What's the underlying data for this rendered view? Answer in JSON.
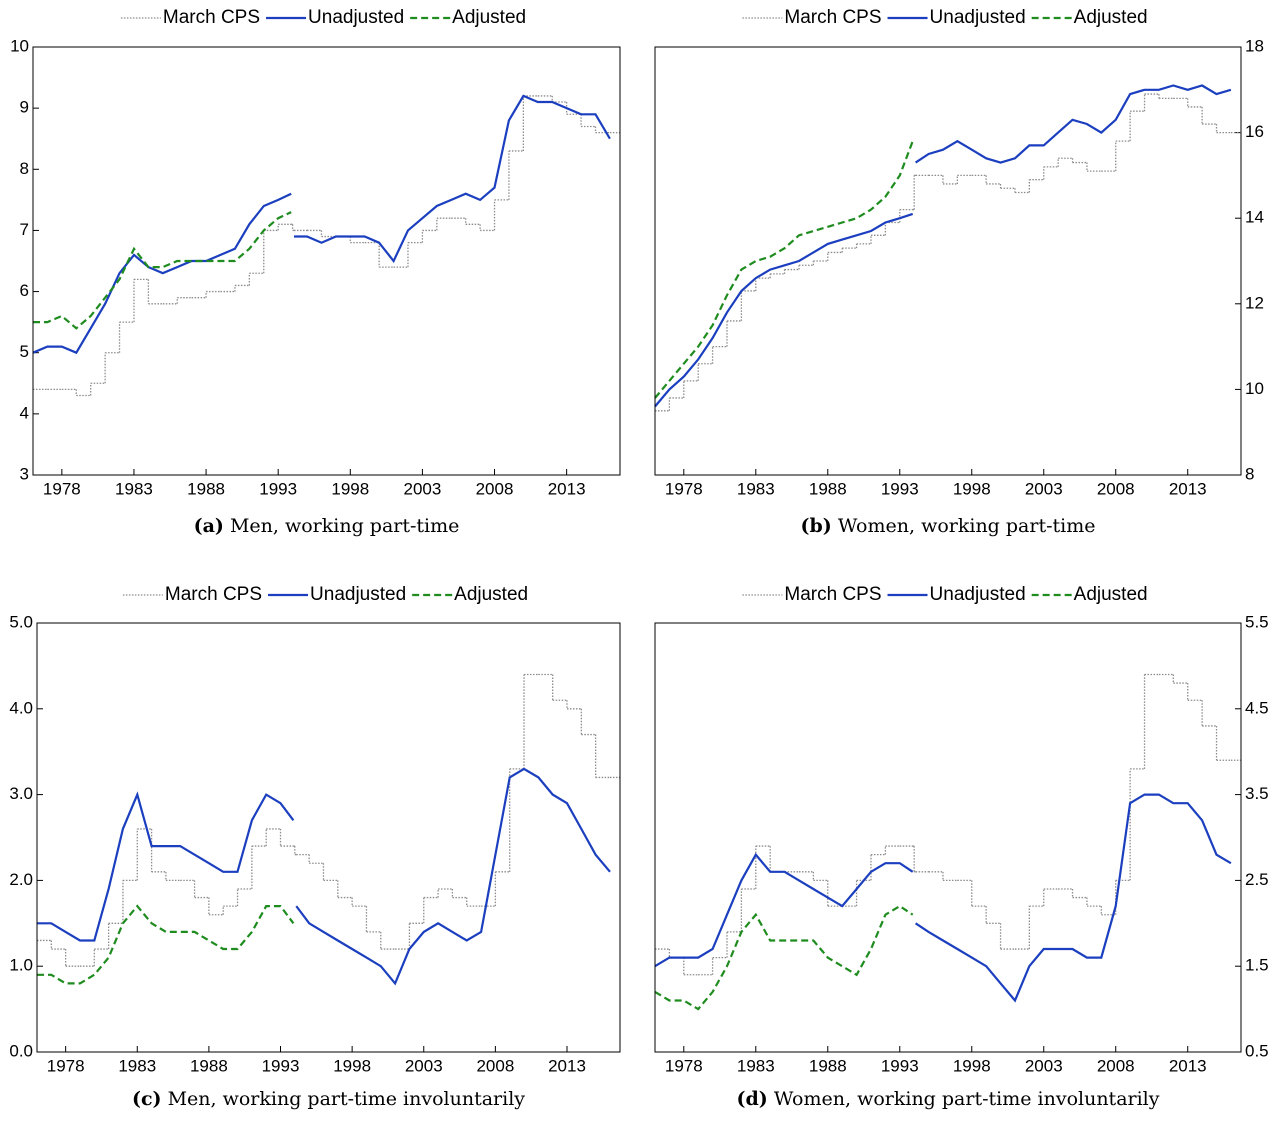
{
  "chart_data": [
    {
      "type": "line",
      "caption_label": "(a)",
      "caption": "Men, working part-time",
      "y_axis_side": "left",
      "xlim": [
        1976,
        2016.7
      ],
      "xticks": [
        1978,
        1983,
        1988,
        1993,
        1998,
        2003,
        2008,
        2013
      ],
      "ylim": [
        3,
        10
      ],
      "yticks": [
        3,
        4,
        5,
        6,
        7,
        8,
        9,
        10
      ],
      "x": [
        1976,
        1977,
        1978,
        1979,
        1980,
        1981,
        1982,
        1983,
        1984,
        1985,
        1986,
        1987,
        1988,
        1989,
        1990,
        1991,
        1992,
        1993,
        1993.9,
        1994,
        1994.1,
        1995,
        1996,
        1997,
        1998,
        1999,
        2000,
        2001,
        2002,
        2003,
        2004,
        2005,
        2006,
        2007,
        2008,
        2009,
        2010,
        2011,
        2012,
        2013,
        2014,
        2015,
        2016
      ],
      "series": [
        {
          "name": "March CPS",
          "color": "#8c8c8c",
          "dash": "dotted",
          "step": true,
          "values": [
            4.4,
            4.4,
            4.4,
            4.3,
            4.5,
            5.0,
            5.5,
            6.2,
            5.8,
            5.8,
            5.9,
            5.9,
            6.0,
            6.0,
            6.1,
            6.3,
            7.0,
            7.1,
            7.1,
            7.0,
            7.0,
            7.0,
            6.9,
            6.9,
            6.8,
            6.8,
            6.4,
            6.4,
            6.8,
            7.0,
            7.2,
            7.2,
            7.1,
            7.0,
            7.5,
            8.3,
            9.2,
            9.2,
            9.1,
            8.9,
            8.7,
            8.6,
            8.6
          ]
        },
        {
          "name": "Unadjusted",
          "color": "#1b3fbf",
          "dash": "solid",
          "step": false,
          "values": [
            5.0,
            5.1,
            5.1,
            5.0,
            5.4,
            5.8,
            6.3,
            6.6,
            6.4,
            6.3,
            6.4,
            6.5,
            6.5,
            6.6,
            6.7,
            7.1,
            7.4,
            7.5,
            7.6,
            null,
            6.9,
            6.9,
            6.8,
            6.9,
            6.9,
            6.9,
            6.8,
            6.5,
            7.0,
            7.2,
            7.4,
            7.5,
            7.6,
            7.5,
            7.7,
            8.8,
            9.2,
            9.1,
            9.1,
            9.0,
            8.9,
            8.9,
            8.5
          ]
        },
        {
          "name": "Adjusted",
          "color": "#1e8c1e",
          "dash": "dashed",
          "step": false,
          "values": [
            5.5,
            5.5,
            5.6,
            5.4,
            5.6,
            5.9,
            6.2,
            6.7,
            6.4,
            6.4,
            6.5,
            6.5,
            6.5,
            6.5,
            6.5,
            6.7,
            7.0,
            7.2,
            7.3,
            null,
            null,
            null,
            null,
            null,
            null,
            null,
            null,
            null,
            null,
            null,
            null,
            null,
            null,
            null,
            null,
            null,
            null,
            null,
            null,
            null,
            null,
            null,
            null
          ]
        }
      ]
    },
    {
      "type": "line",
      "caption_label": "(b)",
      "caption": "Women, working part-time",
      "y_axis_side": "right",
      "xlim": [
        1976,
        2016.7
      ],
      "xticks": [
        1978,
        1983,
        1988,
        1993,
        1998,
        2003,
        2008,
        2013
      ],
      "ylim": [
        8,
        18
      ],
      "yticks": [
        8,
        10,
        12,
        14,
        16,
        18
      ],
      "x": [
        1976,
        1977,
        1978,
        1979,
        1980,
        1981,
        1982,
        1983,
        1984,
        1985,
        1986,
        1987,
        1988,
        1989,
        1990,
        1991,
        1992,
        1993,
        1993.9,
        1994,
        1994.1,
        1995,
        1996,
        1997,
        1998,
        1999,
        2000,
        2001,
        2002,
        2003,
        2004,
        2005,
        2006,
        2007,
        2008,
        2009,
        2010,
        2011,
        2012,
        2013,
        2014,
        2015,
        2016
      ],
      "series": [
        {
          "name": "March CPS",
          "color": "#8c8c8c",
          "dash": "dotted",
          "step": true,
          "values": [
            9.5,
            9.8,
            10.2,
            10.6,
            11.0,
            11.6,
            12.3,
            12.6,
            12.7,
            12.8,
            12.9,
            13.0,
            13.2,
            13.3,
            13.4,
            13.6,
            13.9,
            14.2,
            14.2,
            15.0,
            15.0,
            15.0,
            14.8,
            15.0,
            15.0,
            14.8,
            14.7,
            14.6,
            14.9,
            15.2,
            15.4,
            15.3,
            15.1,
            15.1,
            15.8,
            16.5,
            16.9,
            16.8,
            16.8,
            16.6,
            16.2,
            16.0,
            16.0
          ]
        },
        {
          "name": "Unadjusted",
          "color": "#1b3fbf",
          "dash": "solid",
          "step": false,
          "values": [
            9.6,
            10.0,
            10.3,
            10.7,
            11.2,
            11.8,
            12.3,
            12.6,
            12.8,
            12.9,
            13.0,
            13.2,
            13.4,
            13.5,
            13.6,
            13.7,
            13.9,
            14.0,
            14.1,
            null,
            15.3,
            15.5,
            15.6,
            15.8,
            15.6,
            15.4,
            15.3,
            15.4,
            15.7,
            15.7,
            16.0,
            16.3,
            16.2,
            16.0,
            16.3,
            16.9,
            17.0,
            17.0,
            17.1,
            17.0,
            17.1,
            16.9,
            17.0
          ]
        },
        {
          "name": "Adjusted",
          "color": "#1e8c1e",
          "dash": "dashed",
          "step": false,
          "values": [
            9.8,
            10.2,
            10.6,
            11.0,
            11.5,
            12.2,
            12.8,
            13.0,
            13.1,
            13.3,
            13.6,
            13.7,
            13.8,
            13.9,
            14.0,
            14.2,
            14.5,
            15.0,
            15.8,
            null,
            null,
            null,
            null,
            null,
            null,
            null,
            null,
            null,
            null,
            null,
            null,
            null,
            null,
            null,
            null,
            null,
            null,
            null,
            null,
            null,
            null,
            null,
            null
          ]
        }
      ]
    },
    {
      "type": "line",
      "caption_label": "(c)",
      "caption": "Men, working part-time involuntarily",
      "y_axis_side": "left",
      "xlim": [
        1976,
        2016.7
      ],
      "xticks": [
        1978,
        1983,
        1988,
        1993,
        1998,
        2003,
        2008,
        2013
      ],
      "ylim": [
        0,
        5
      ],
      "yticks": [
        {
          "value": 0,
          "label": "0.0"
        },
        {
          "value": 1,
          "label": "1.0"
        },
        {
          "value": 2,
          "label": "2.0"
        },
        {
          "value": 3,
          "label": "3.0"
        },
        {
          "value": 4,
          "label": "4.0"
        },
        {
          "value": 5,
          "label": "5.0"
        }
      ],
      "x": [
        1976,
        1977,
        1978,
        1979,
        1980,
        1981,
        1982,
        1983,
        1984,
        1985,
        1986,
        1987,
        1988,
        1989,
        1990,
        1991,
        1992,
        1993,
        1993.9,
        1994,
        1994.1,
        1995,
        1996,
        1997,
        1998,
        1999,
        2000,
        2001,
        2002,
        2003,
        2004,
        2005,
        2006,
        2007,
        2008,
        2009,
        2010,
        2011,
        2012,
        2013,
        2014,
        2015,
        2016
      ],
      "series": [
        {
          "name": "March CPS",
          "color": "#8c8c8c",
          "dash": "dotted",
          "step": true,
          "values": [
            1.3,
            1.2,
            1.0,
            1.0,
            1.2,
            1.5,
            2.0,
            2.6,
            2.1,
            2.0,
            2.0,
            1.8,
            1.6,
            1.7,
            1.9,
            2.4,
            2.6,
            2.4,
            2.4,
            2.3,
            2.3,
            2.2,
            2.0,
            1.8,
            1.7,
            1.4,
            1.2,
            1.2,
            1.5,
            1.8,
            1.9,
            1.8,
            1.7,
            1.7,
            2.1,
            3.3,
            4.4,
            4.4,
            4.1,
            4.0,
            3.7,
            3.2,
            3.2
          ]
        },
        {
          "name": "Unadjusted",
          "color": "#1b3fbf",
          "dash": "solid",
          "step": false,
          "values": [
            1.5,
            1.5,
            1.4,
            1.3,
            1.3,
            1.9,
            2.6,
            3.0,
            2.4,
            2.4,
            2.4,
            2.3,
            2.2,
            2.1,
            2.1,
            2.7,
            3.0,
            2.9,
            2.7,
            null,
            1.7,
            1.5,
            1.4,
            1.3,
            1.2,
            1.1,
            1.0,
            0.8,
            1.2,
            1.4,
            1.5,
            1.4,
            1.3,
            1.4,
            2.3,
            3.2,
            3.3,
            3.2,
            3.0,
            2.9,
            2.6,
            2.3,
            2.1
          ]
        },
        {
          "name": "Adjusted",
          "color": "#1e8c1e",
          "dash": "dashed",
          "step": false,
          "values": [
            0.9,
            0.9,
            0.8,
            0.8,
            0.9,
            1.1,
            1.5,
            1.7,
            1.5,
            1.4,
            1.4,
            1.4,
            1.3,
            1.2,
            1.2,
            1.4,
            1.7,
            1.7,
            1.5,
            null,
            null,
            null,
            null,
            null,
            null,
            null,
            null,
            null,
            null,
            null,
            null,
            null,
            null,
            null,
            null,
            null,
            null,
            null,
            null,
            null,
            null,
            null,
            null
          ]
        }
      ]
    },
    {
      "type": "line",
      "caption_label": "(d)",
      "caption": "Women, working part-time involuntarily",
      "y_axis_side": "right",
      "xlim": [
        1976,
        2016.7
      ],
      "xticks": [
        1978,
        1983,
        1988,
        1993,
        1998,
        2003,
        2008,
        2013
      ],
      "ylim": [
        0.5,
        5.5
      ],
      "yticks": [
        0.5,
        1.5,
        2.5,
        3.5,
        4.5,
        5.5
      ],
      "x": [
        1976,
        1977,
        1978,
        1979,
        1980,
        1981,
        1982,
        1983,
        1984,
        1985,
        1986,
        1987,
        1988,
        1989,
        1990,
        1991,
        1992,
        1993,
        1993.9,
        1994,
        1994.1,
        1995,
        1996,
        1997,
        1998,
        1999,
        2000,
        2001,
        2002,
        2003,
        2004,
        2005,
        2006,
        2007,
        2008,
        2009,
        2010,
        2011,
        2012,
        2013,
        2014,
        2015,
        2016
      ],
      "series": [
        {
          "name": "March CPS",
          "color": "#8c8c8c",
          "dash": "dotted",
          "step": true,
          "values": [
            1.7,
            1.6,
            1.4,
            1.4,
            1.6,
            1.9,
            2.4,
            2.9,
            2.6,
            2.6,
            2.6,
            2.5,
            2.2,
            2.2,
            2.5,
            2.8,
            2.9,
            2.9,
            2.9,
            2.6,
            2.6,
            2.6,
            2.5,
            2.5,
            2.2,
            2.0,
            1.7,
            1.7,
            2.2,
            2.4,
            2.4,
            2.3,
            2.2,
            2.1,
            2.5,
            3.8,
            4.9,
            4.9,
            4.8,
            4.6,
            4.3,
            3.9,
            3.9
          ]
        },
        {
          "name": "Unadjusted",
          "color": "#1b3fbf",
          "dash": "solid",
          "step": false,
          "values": [
            1.5,
            1.6,
            1.6,
            1.6,
            1.7,
            2.1,
            2.5,
            2.8,
            2.6,
            2.6,
            2.5,
            2.4,
            2.3,
            2.2,
            2.4,
            2.6,
            2.7,
            2.7,
            2.6,
            null,
            2.0,
            1.9,
            1.8,
            1.7,
            1.6,
            1.5,
            1.3,
            1.1,
            1.5,
            1.7,
            1.7,
            1.7,
            1.6,
            1.6,
            2.2,
            3.4,
            3.5,
            3.5,
            3.4,
            3.4,
            3.2,
            2.8,
            2.7
          ]
        },
        {
          "name": "Adjusted",
          "color": "#1e8c1e",
          "dash": "dashed",
          "step": false,
          "values": [
            1.2,
            1.1,
            1.1,
            1.0,
            1.2,
            1.5,
            1.9,
            2.1,
            1.8,
            1.8,
            1.8,
            1.8,
            1.6,
            1.5,
            1.4,
            1.7,
            2.1,
            2.2,
            2.1,
            null,
            null,
            null,
            null,
            null,
            null,
            null,
            null,
            null,
            null,
            null,
            null,
            null,
            null,
            null,
            null,
            null,
            null,
            null,
            null,
            null,
            null,
            null,
            null
          ]
        }
      ]
    }
  ]
}
